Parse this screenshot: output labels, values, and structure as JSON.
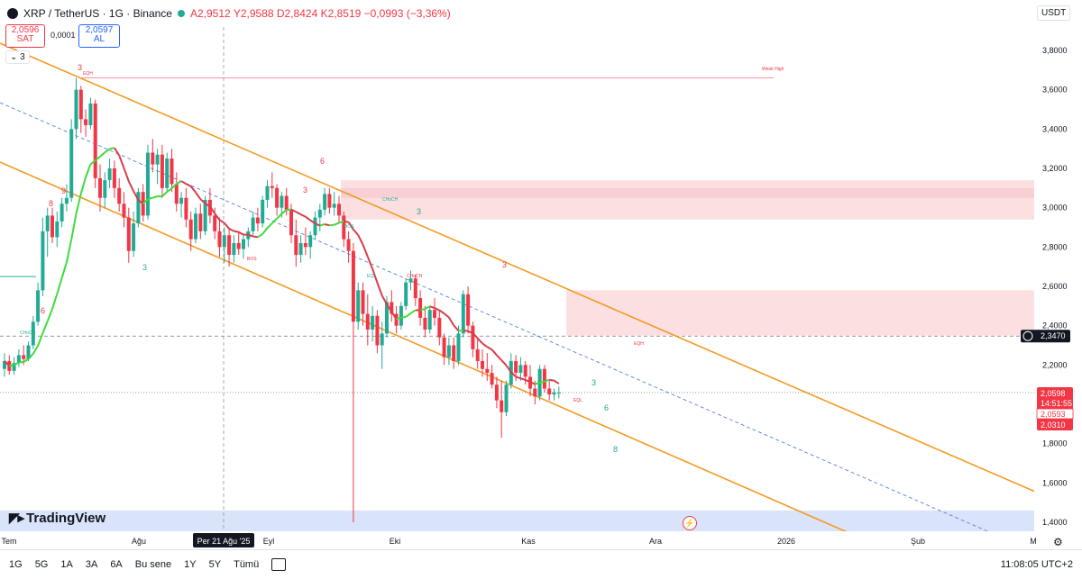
{
  "header": {
    "symbol": "XRP / TetherUS · 1G · Binance",
    "open": "A2,9512",
    "high": "Y2,9588",
    "low": "D2,8424",
    "close": "K2,8519",
    "change": "−0,0993 (−3,36%)",
    "status_color": "#22ab94"
  },
  "trade": {
    "sell_price": "2,0596",
    "sell_label": "SAT",
    "spread": "0,0001",
    "buy_price": "2,0597",
    "buy_label": "AL"
  },
  "indicator_toggle": "3",
  "currency": "USDT",
  "brand": "TradingView",
  "bottom": {
    "ranges": [
      "1G",
      "5G",
      "1A",
      "3A",
      "6A",
      "Bu sene",
      "1Y",
      "5Y",
      "Tümü"
    ],
    "clock": "11:08:05 UTC+2"
  },
  "chart_data": {
    "type": "candlestick",
    "symbol": "XRP/USDT",
    "y_ticks": [
      "3,8000",
      "3,6000",
      "3,4000",
      "3,2000",
      "3,0000",
      "2,8000",
      "2,6000",
      "2,4000",
      "2,2000",
      "2,0000",
      "1,8000",
      "1,6000",
      "1,4000"
    ],
    "ylim": [
      1.4,
      3.8
    ],
    "x_ticks": [
      "Tem",
      "Ağu",
      "Eyl",
      "Eki",
      "Kas",
      "Ara",
      "2026",
      "Şub",
      "M"
    ],
    "crosshair_x_label": "Per 21 Ağu '25",
    "price_labels": {
      "level": "2,3470",
      "last": "2,0598",
      "countdown": "14:51:55",
      "bid": "2,0593",
      "low": "2,0310"
    },
    "colors": {
      "up": "#22ab94",
      "down": "#f23645",
      "channel": "#f59a23",
      "ma_up": "#3ddc3d",
      "ma_down": "#d93c4a",
      "zone": "#f7c5c9",
      "horizon": "#cfdcf7"
    },
    "annotations": [
      "3",
      "EQH",
      "8",
      "9",
      "6",
      "CHoCH",
      "3",
      "6",
      "3",
      "CHoCH",
      "BOS",
      "BOS",
      "EQL",
      "CHoCH",
      "3",
      "3",
      "EQL",
      "3",
      "6",
      "8",
      "EQH",
      "Weak High"
    ],
    "candles": [
      {
        "o": 2.18,
        "h": 2.26,
        "l": 2.14,
        "c": 2.22
      },
      {
        "o": 2.22,
        "h": 2.25,
        "l": 2.15,
        "c": 2.17
      },
      {
        "o": 2.17,
        "h": 2.24,
        "l": 2.15,
        "c": 2.21
      },
      {
        "o": 2.21,
        "h": 2.28,
        "l": 2.19,
        "c": 2.25
      },
      {
        "o": 2.25,
        "h": 2.3,
        "l": 2.2,
        "c": 2.23
      },
      {
        "o": 2.23,
        "h": 2.32,
        "l": 2.22,
        "c": 2.3
      },
      {
        "o": 2.3,
        "h": 2.45,
        "l": 2.28,
        "c": 2.42
      },
      {
        "o": 2.42,
        "h": 2.62,
        "l": 2.4,
        "c": 2.58
      },
      {
        "o": 2.58,
        "h": 2.95,
        "l": 2.55,
        "c": 2.88
      },
      {
        "o": 2.88,
        "h": 3.0,
        "l": 2.75,
        "c": 2.96
      },
      {
        "o": 2.96,
        "h": 3.0,
        "l": 2.82,
        "c": 2.85
      },
      {
        "o": 2.85,
        "h": 2.98,
        "l": 2.8,
        "c": 2.93
      },
      {
        "o": 2.93,
        "h": 3.05,
        "l": 2.9,
        "c": 3.02
      },
      {
        "o": 3.02,
        "h": 3.12,
        "l": 2.98,
        "c": 3.05
      },
      {
        "o": 3.05,
        "h": 3.45,
        "l": 3.03,
        "c": 3.4
      },
      {
        "o": 3.4,
        "h": 3.66,
        "l": 3.35,
        "c": 3.6
      },
      {
        "o": 3.6,
        "h": 3.62,
        "l": 3.38,
        "c": 3.45
      },
      {
        "o": 3.45,
        "h": 3.5,
        "l": 3.36,
        "c": 3.42
      },
      {
        "o": 3.42,
        "h": 3.56,
        "l": 3.4,
        "c": 3.53
      },
      {
        "o": 3.53,
        "h": 3.55,
        "l": 3.1,
        "c": 3.15
      },
      {
        "o": 3.15,
        "h": 3.22,
        "l": 2.98,
        "c": 3.05
      },
      {
        "o": 3.05,
        "h": 3.18,
        "l": 3.0,
        "c": 3.14
      },
      {
        "o": 3.14,
        "h": 3.25,
        "l": 3.1,
        "c": 3.2
      },
      {
        "o": 3.2,
        "h": 3.24,
        "l": 3.05,
        "c": 3.1
      },
      {
        "o": 3.1,
        "h": 3.15,
        "l": 2.98,
        "c": 3.02
      },
      {
        "o": 3.02,
        "h": 3.08,
        "l": 2.9,
        "c": 2.95
      },
      {
        "o": 2.95,
        "h": 3.0,
        "l": 2.72,
        "c": 2.78
      },
      {
        "o": 2.78,
        "h": 2.98,
        "l": 2.75,
        "c": 2.92
      },
      {
        "o": 2.92,
        "h": 3.1,
        "l": 2.9,
        "c": 3.08
      },
      {
        "o": 3.08,
        "h": 3.12,
        "l": 2.93,
        "c": 2.96
      },
      {
        "o": 2.96,
        "h": 3.32,
        "l": 2.94,
        "c": 3.28
      },
      {
        "o": 3.28,
        "h": 3.35,
        "l": 3.18,
        "c": 3.22
      },
      {
        "o": 3.22,
        "h": 3.3,
        "l": 3.12,
        "c": 3.27
      },
      {
        "o": 3.27,
        "h": 3.32,
        "l": 3.05,
        "c": 3.1
      },
      {
        "o": 3.1,
        "h": 3.28,
        "l": 3.08,
        "c": 3.25
      },
      {
        "o": 3.25,
        "h": 3.3,
        "l": 3.08,
        "c": 3.12
      },
      {
        "o": 3.12,
        "h": 3.18,
        "l": 2.98,
        "c": 3.02
      },
      {
        "o": 3.02,
        "h": 3.08,
        "l": 2.95,
        "c": 3.05
      },
      {
        "o": 3.05,
        "h": 3.1,
        "l": 2.9,
        "c": 2.94
      },
      {
        "o": 2.94,
        "h": 2.98,
        "l": 2.78,
        "c": 2.84
      },
      {
        "o": 2.84,
        "h": 3.0,
        "l": 2.82,
        "c": 2.97
      },
      {
        "o": 2.97,
        "h": 3.02,
        "l": 2.84,
        "c": 2.88
      },
      {
        "o": 2.88,
        "h": 3.06,
        "l": 2.86,
        "c": 3.04
      },
      {
        "o": 3.04,
        "h": 3.1,
        "l": 2.92,
        "c": 2.96
      },
      {
        "o": 2.96,
        "h": 3.0,
        "l": 2.84,
        "c": 2.88
      },
      {
        "o": 2.88,
        "h": 2.95,
        "l": 2.75,
        "c": 2.8
      },
      {
        "o": 2.8,
        "h": 2.9,
        "l": 2.72,
        "c": 2.86
      },
      {
        "o": 2.86,
        "h": 2.9,
        "l": 2.7,
        "c": 2.76
      },
      {
        "o": 2.76,
        "h": 2.86,
        "l": 2.72,
        "c": 2.82
      },
      {
        "o": 2.82,
        "h": 2.88,
        "l": 2.76,
        "c": 2.79
      },
      {
        "o": 2.79,
        "h": 2.86,
        "l": 2.74,
        "c": 2.84
      },
      {
        "o": 2.84,
        "h": 2.9,
        "l": 2.8,
        "c": 2.88
      },
      {
        "o": 2.88,
        "h": 2.98,
        "l": 2.86,
        "c": 2.95
      },
      {
        "o": 2.95,
        "h": 3.0,
        "l": 2.88,
        "c": 2.92
      },
      {
        "o": 2.92,
        "h": 3.06,
        "l": 2.9,
        "c": 3.04
      },
      {
        "o": 3.04,
        "h": 3.14,
        "l": 3.0,
        "c": 3.11
      },
      {
        "o": 3.11,
        "h": 3.18,
        "l": 3.05,
        "c": 3.1
      },
      {
        "o": 3.1,
        "h": 3.12,
        "l": 2.96,
        "c": 3.0
      },
      {
        "o": 3.0,
        "h": 3.08,
        "l": 2.95,
        "c": 3.06
      },
      {
        "o": 3.06,
        "h": 3.1,
        "l": 2.96,
        "c": 2.99
      },
      {
        "o": 2.99,
        "h": 3.02,
        "l": 2.82,
        "c": 2.86
      },
      {
        "o": 2.86,
        "h": 2.94,
        "l": 2.7,
        "c": 2.76
      },
      {
        "o": 2.76,
        "h": 2.86,
        "l": 2.72,
        "c": 2.82
      },
      {
        "o": 2.82,
        "h": 2.9,
        "l": 2.76,
        "c": 2.8
      },
      {
        "o": 2.8,
        "h": 2.88,
        "l": 2.74,
        "c": 2.86
      },
      {
        "o": 2.86,
        "h": 2.98,
        "l": 2.84,
        "c": 2.95
      },
      {
        "o": 2.95,
        "h": 3.02,
        "l": 2.88,
        "c": 2.99
      },
      {
        "o": 2.99,
        "h": 3.1,
        "l": 2.96,
        "c": 3.07
      },
      {
        "o": 3.07,
        "h": 3.1,
        "l": 2.97,
        "c": 3.0
      },
      {
        "o": 3.0,
        "h": 3.08,
        "l": 2.96,
        "c": 3.02
      },
      {
        "o": 3.02,
        "h": 3.06,
        "l": 2.92,
        "c": 2.96
      },
      {
        "o": 2.96,
        "h": 2.98,
        "l": 2.8,
        "c": 2.84
      },
      {
        "o": 2.84,
        "h": 2.88,
        "l": 2.72,
        "c": 2.78
      },
      {
        "o": 2.78,
        "h": 2.82,
        "l": 1.4,
        "c": 2.42
      },
      {
        "o": 2.42,
        "h": 2.62,
        "l": 2.38,
        "c": 2.58
      },
      {
        "o": 2.58,
        "h": 2.62,
        "l": 2.4,
        "c": 2.46
      },
      {
        "o": 2.46,
        "h": 2.56,
        "l": 2.3,
        "c": 2.38
      },
      {
        "o": 2.38,
        "h": 2.5,
        "l": 2.32,
        "c": 2.45
      },
      {
        "o": 2.45,
        "h": 2.48,
        "l": 2.26,
        "c": 2.3
      },
      {
        "o": 2.3,
        "h": 2.42,
        "l": 2.18,
        "c": 2.36
      },
      {
        "o": 2.36,
        "h": 2.55,
        "l": 2.34,
        "c": 2.52
      },
      {
        "o": 2.52,
        "h": 2.58,
        "l": 2.42,
        "c": 2.46
      },
      {
        "o": 2.46,
        "h": 2.5,
        "l": 2.36,
        "c": 2.4
      },
      {
        "o": 2.4,
        "h": 2.52,
        "l": 2.38,
        "c": 2.5
      },
      {
        "o": 2.5,
        "h": 2.64,
        "l": 2.48,
        "c": 2.62
      },
      {
        "o": 2.62,
        "h": 2.68,
        "l": 2.58,
        "c": 2.64
      },
      {
        "o": 2.64,
        "h": 2.66,
        "l": 2.5,
        "c": 2.54
      },
      {
        "o": 2.54,
        "h": 2.58,
        "l": 2.4,
        "c": 2.44
      },
      {
        "o": 2.44,
        "h": 2.5,
        "l": 2.34,
        "c": 2.38
      },
      {
        "o": 2.38,
        "h": 2.5,
        "l": 2.36,
        "c": 2.48
      },
      {
        "o": 2.48,
        "h": 2.54,
        "l": 2.4,
        "c": 2.44
      },
      {
        "o": 2.44,
        "h": 2.48,
        "l": 2.3,
        "c": 2.34
      },
      {
        "o": 2.34,
        "h": 2.36,
        "l": 2.2,
        "c": 2.24
      },
      {
        "o": 2.24,
        "h": 2.34,
        "l": 2.2,
        "c": 2.3
      },
      {
        "o": 2.3,
        "h": 2.34,
        "l": 2.18,
        "c": 2.22
      },
      {
        "o": 2.22,
        "h": 2.4,
        "l": 2.2,
        "c": 2.36
      },
      {
        "o": 2.36,
        "h": 2.58,
        "l": 2.34,
        "c": 2.56
      },
      {
        "o": 2.56,
        "h": 2.6,
        "l": 2.36,
        "c": 2.4
      },
      {
        "o": 2.4,
        "h": 2.42,
        "l": 2.24,
        "c": 2.28
      },
      {
        "o": 2.28,
        "h": 2.34,
        "l": 2.18,
        "c": 2.22
      },
      {
        "o": 2.22,
        "h": 2.28,
        "l": 2.14,
        "c": 2.18
      },
      {
        "o": 2.18,
        "h": 2.26,
        "l": 2.12,
        "c": 2.16
      },
      {
        "o": 2.16,
        "h": 2.2,
        "l": 2.08,
        "c": 2.1
      },
      {
        "o": 2.1,
        "h": 2.14,
        "l": 1.98,
        "c": 2.02
      },
      {
        "o": 2.02,
        "h": 2.12,
        "l": 1.83,
        "c": 1.96
      },
      {
        "o": 1.96,
        "h": 2.12,
        "l": 1.94,
        "c": 2.1
      },
      {
        "o": 2.1,
        "h": 2.26,
        "l": 2.08,
        "c": 2.22
      },
      {
        "o": 2.22,
        "h": 2.25,
        "l": 2.12,
        "c": 2.16
      },
      {
        "o": 2.16,
        "h": 2.24,
        "l": 2.12,
        "c": 2.2
      },
      {
        "o": 2.2,
        "h": 2.22,
        "l": 2.1,
        "c": 2.14
      },
      {
        "o": 2.14,
        "h": 2.2,
        "l": 2.04,
        "c": 2.08
      },
      {
        "o": 2.08,
        "h": 2.12,
        "l": 2.0,
        "c": 2.04
      },
      {
        "o": 2.04,
        "h": 2.2,
        "l": 2.02,
        "c": 2.18
      },
      {
        "o": 2.18,
        "h": 2.2,
        "l": 2.06,
        "c": 2.08
      },
      {
        "o": 2.08,
        "h": 2.12,
        "l": 2.02,
        "c": 2.05
      },
      {
        "o": 2.05,
        "h": 2.08,
        "l": 2.02,
        "c": 2.06
      },
      {
        "o": 2.06,
        "h": 2.09,
        "l": 2.03,
        "c": 2.06
      }
    ]
  }
}
